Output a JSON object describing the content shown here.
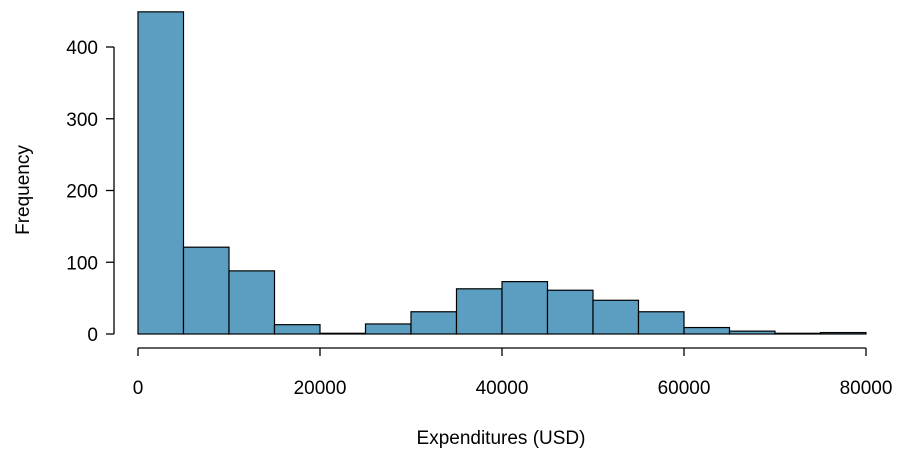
{
  "chart_data": {
    "type": "bar",
    "subtype": "histogram",
    "bar_color": "#5b9ec2",
    "bins": [
      {
        "start": 0,
        "end": 5000,
        "count": 449
      },
      {
        "start": 5000,
        "end": 10000,
        "count": 121
      },
      {
        "start": 10000,
        "end": 15000,
        "count": 88
      },
      {
        "start": 15000,
        "end": 20000,
        "count": 13
      },
      {
        "start": 20000,
        "end": 25000,
        "count": 1
      },
      {
        "start": 25000,
        "end": 30000,
        "count": 14
      },
      {
        "start": 30000,
        "end": 35000,
        "count": 31
      },
      {
        "start": 35000,
        "end": 40000,
        "count": 63
      },
      {
        "start": 40000,
        "end": 45000,
        "count": 73
      },
      {
        "start": 45000,
        "end": 50000,
        "count": 61
      },
      {
        "start": 50000,
        "end": 55000,
        "count": 47
      },
      {
        "start": 55000,
        "end": 60000,
        "count": 31
      },
      {
        "start": 60000,
        "end": 65000,
        "count": 9
      },
      {
        "start": 65000,
        "end": 70000,
        "count": 4
      },
      {
        "start": 70000,
        "end": 75000,
        "count": 1
      },
      {
        "start": 75000,
        "end": 80000,
        "count": 2
      }
    ],
    "xlabel": "Expenditures (USD)",
    "ylabel": "Frequency",
    "xlim": [
      0,
      80000
    ],
    "ylim": [
      0,
      400
    ],
    "x_ticks": [
      0,
      20000,
      40000,
      60000,
      80000
    ],
    "y_ticks": [
      0,
      100,
      200,
      300,
      400
    ],
    "grid": false
  }
}
